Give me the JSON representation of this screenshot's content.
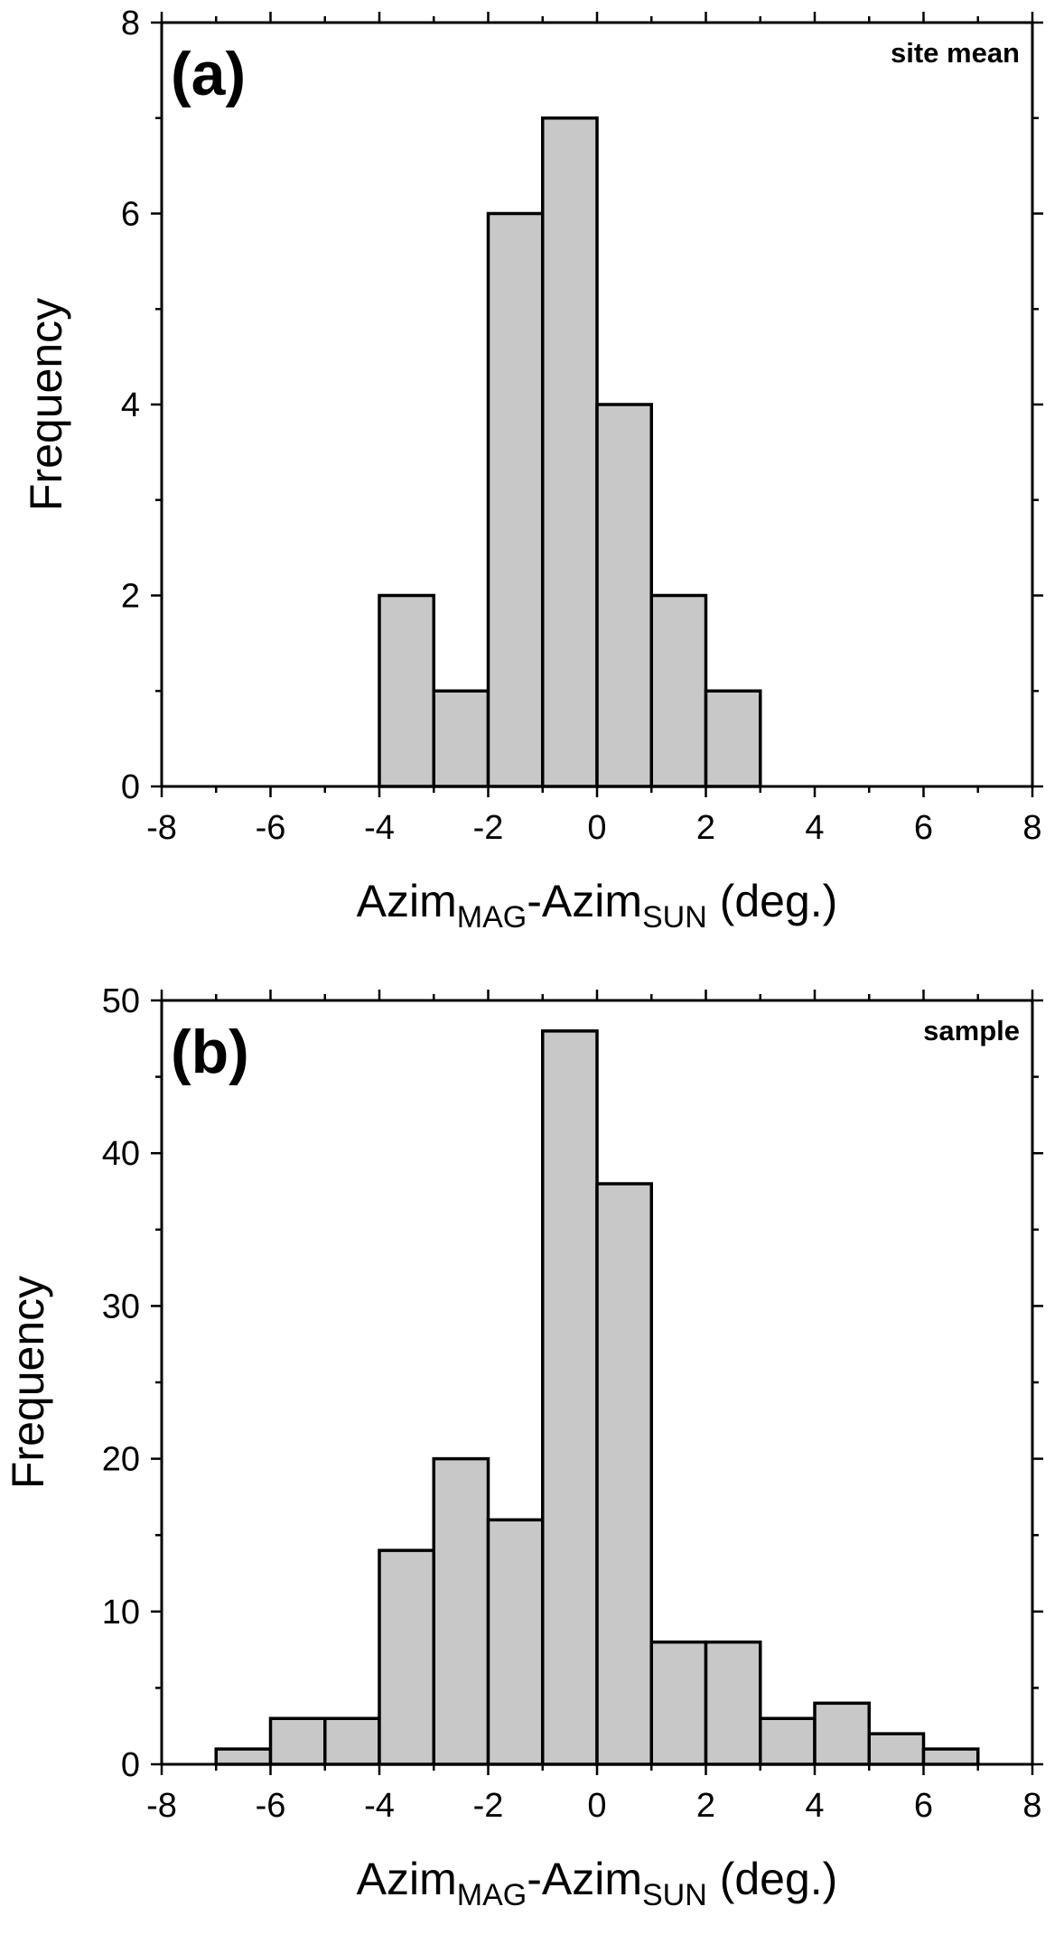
{
  "chart_data": [
    {
      "type": "bar",
      "panel_label": "(a)",
      "annotation": "site mean",
      "ylabel": "Frequency",
      "xlabel": {
        "main": "Azim",
        "sub1": "MAG",
        "mid": "-Azim",
        "sub2": "SUN",
        "tail": " (deg.)"
      },
      "bin_edges": [
        -4,
        -3,
        -2,
        -1,
        0,
        1,
        2,
        3
      ],
      "values": [
        2,
        1,
        6,
        7,
        4,
        2,
        1
      ],
      "xlim": [
        -8,
        8
      ],
      "ylim": [
        0,
        8
      ],
      "x_ticks": [
        "-8",
        "-6",
        "-4",
        "-2",
        "0",
        "2",
        "4",
        "6",
        "8"
      ],
      "y_ticks": [
        "0",
        "2",
        "4",
        "6",
        "8"
      ],
      "bar_color": "#c8c8c8"
    },
    {
      "type": "bar",
      "panel_label": "(b)",
      "annotation": "sample",
      "ylabel": "Frequency",
      "xlabel": {
        "main": "Azim",
        "sub1": "MAG",
        "mid": "-Azim",
        "sub2": "SUN",
        "tail": " (deg.)"
      },
      "bin_edges": [
        -7,
        -6,
        -5,
        -4,
        -3,
        -2,
        -1,
        0,
        1,
        2,
        3,
        4,
        5,
        6,
        7
      ],
      "values": [
        1,
        3,
        3,
        14,
        20,
        16,
        48,
        38,
        8,
        8,
        3,
        4,
        2,
        1
      ],
      "xlim": [
        -8,
        8
      ],
      "ylim": [
        0,
        50
      ],
      "x_ticks": [
        "-8",
        "-6",
        "-4",
        "-2",
        "0",
        "2",
        "4",
        "6",
        "8"
      ],
      "y_ticks": [
        "0",
        "10",
        "20",
        "30",
        "40",
        "50"
      ],
      "bar_color": "#c8c8c8"
    }
  ]
}
